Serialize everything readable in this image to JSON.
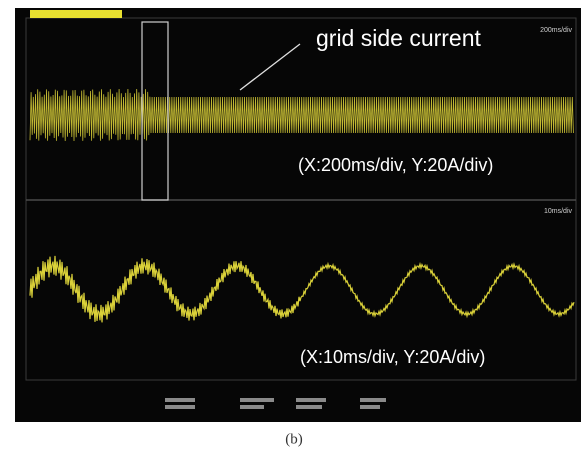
{
  "screen": {
    "top_panel": {
      "annotation": "grid side current",
      "timebase": "200ms/div",
      "scale_note": "(X:200ms/div, Y:20A/div)"
    },
    "bottom_panel": {
      "timebase": "10ms/div",
      "scale_note": "(X:10ms/div, Y:20A/div)"
    }
  },
  "caption": "(b)"
}
